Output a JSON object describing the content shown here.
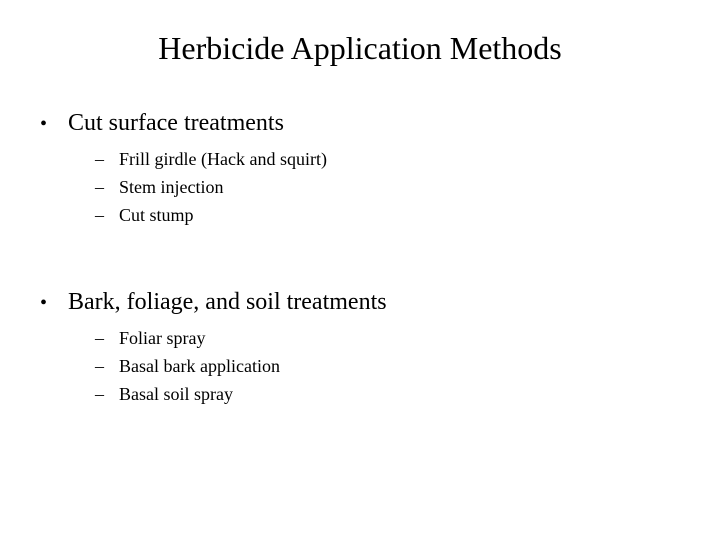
{
  "slide": {
    "title": "Herbicide Application Methods",
    "title_fontsize": 32,
    "background_color": "#ffffff",
    "text_color": "#000000",
    "font_family": "Times New Roman",
    "bullets": [
      {
        "text": "Cut surface treatments",
        "fontsize": 24,
        "marker": "•",
        "sub": [
          {
            "text": "Frill girdle (Hack and squirt)",
            "marker": "–",
            "fontsize": 18
          },
          {
            "text": "Stem injection",
            "marker": "–",
            "fontsize": 18
          },
          {
            "text": "Cut stump",
            "marker": "–",
            "fontsize": 18
          }
        ]
      },
      {
        "text": "Bark, foliage, and soil treatments",
        "fontsize": 24,
        "marker": "•",
        "sub": [
          {
            "text": "Foliar spray",
            "marker": "–",
            "fontsize": 18
          },
          {
            "text": "Basal bark application",
            "marker": "–",
            "fontsize": 18
          },
          {
            "text": "Basal soil spray",
            "marker": "–",
            "fontsize": 18
          }
        ]
      }
    ]
  }
}
